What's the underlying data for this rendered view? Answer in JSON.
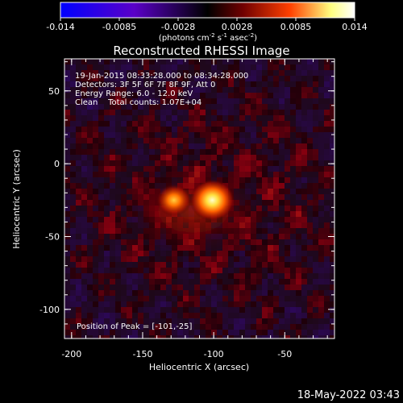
{
  "colorbar": {
    "ticks": [
      "-0.014",
      "-0.0085",
      "-0.0028",
      "0.0028",
      "0.0085",
      "0.014"
    ],
    "units_main": "(photons cm",
    "units_exp1": "-2",
    "units_mid": " s",
    "units_exp2": "-1",
    "units_end": " asec",
    "units_exp3": "-2",
    "units_close": ")"
  },
  "title": "Reconstructed RHESSI Image",
  "info": {
    "line1": "19-Jan-2015 08:33:28.000 to 08:34:28.000",
    "line2": "Detectors: 3F 5F 6F 7F 8F 9F, Att 0",
    "line3": "Energy Range: 6.0 - 12.0 keV",
    "line4": "Clean    Total counts: 1.07E+04"
  },
  "peak_label": "Position of Peak = [-101,-25]",
  "xlabel": "Heliocentric X (arcsec)",
  "ylabel": "Heliocentric Y (arcsec)",
  "xticks": [
    {
      "value": -200,
      "label": "-200"
    },
    {
      "value": -150,
      "label": "-150"
    },
    {
      "value": -100,
      "label": "-100"
    },
    {
      "value": -50,
      "label": "-50"
    }
  ],
  "yticks": [
    {
      "value": 50,
      "label": "50"
    },
    {
      "value": 0,
      "label": "0"
    },
    {
      "value": -50,
      "label": "-50"
    },
    {
      "value": -100,
      "label": "-100"
    }
  ],
  "axis_ranges": {
    "x": [
      -205,
      -15
    ],
    "y": [
      -120,
      72
    ]
  },
  "peaks": [
    {
      "x": -101,
      "y": -25,
      "intensity": 1.0
    },
    {
      "x": -128,
      "y": -25,
      "intensity": 0.72
    }
  ],
  "footer_time": "18-May-2022 03:43",
  "colors": {
    "background": "#000000",
    "axes": "#ffffff",
    "colormap_negative": [
      "#0000ff",
      "#6000c0",
      "#000000"
    ],
    "colormap_positive": [
      "#000000",
      "#700000",
      "#ff4000",
      "#ffff80",
      "#ffffff"
    ]
  }
}
